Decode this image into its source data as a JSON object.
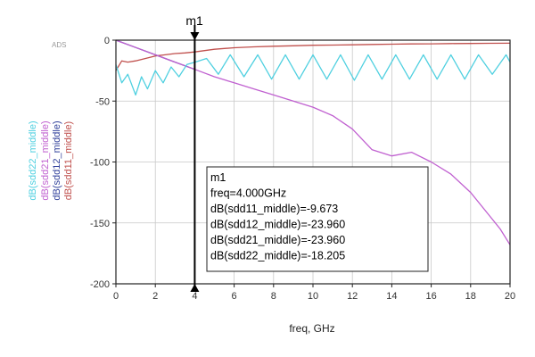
{
  "chart_data": {
    "type": "line",
    "title": "",
    "tool_label": "ADS",
    "xlabel": "freq, GHz",
    "xlim": [
      0,
      20
    ],
    "ylim": [
      -200,
      0
    ],
    "x_ticks": [
      0,
      2,
      4,
      6,
      8,
      10,
      12,
      14,
      16,
      18,
      20
    ],
    "y_ticks": [
      0,
      -50,
      -100,
      -150,
      -200
    ],
    "grid": true,
    "colors": {
      "sdd11": "#c0504d",
      "sdd12": "#2f3f9a",
      "sdd21": "#c060d0",
      "sdd22": "#4fd0e0"
    },
    "series": [
      {
        "name": "dB(sdd11_middle)",
        "key": "sdd11",
        "x": [
          0,
          0.3,
          0.6,
          1,
          1.5,
          2,
          2.5,
          3,
          3.5,
          4,
          5,
          6,
          7,
          8,
          9,
          10,
          11,
          12,
          13,
          14,
          15,
          16,
          17,
          18,
          19,
          20
        ],
        "y": [
          -25,
          -17,
          -18,
          -17,
          -15,
          -13,
          -12,
          -11,
          -10.5,
          -9.7,
          -7.5,
          -6.2,
          -5.5,
          -5.0,
          -4.6,
          -4.2,
          -4.0,
          -3.8,
          -3.5,
          -3.3,
          -3.1,
          -3.0,
          -2.8,
          -2.7,
          -2.6,
          -2.5
        ]
      },
      {
        "name": "dB(sdd12_middle)",
        "key": "sdd12",
        "x": [
          0,
          1,
          2,
          3,
          4
        ],
        "y": [
          0,
          -6,
          -12,
          -18,
          -23.96
        ]
      },
      {
        "name": "dB(sdd21_middle)",
        "key": "sdd21",
        "x": [
          0,
          1,
          2,
          3,
          4,
          5,
          6,
          7,
          8,
          9,
          10,
          11,
          12,
          13,
          14,
          15,
          16,
          17,
          18,
          19,
          19.5,
          20
        ],
        "y": [
          0,
          -6,
          -12,
          -18,
          -23.96,
          -30,
          -35,
          -40,
          -45,
          -50,
          -55,
          -62,
          -73,
          -90,
          -95,
          -92,
          -100,
          -110,
          -125,
          -145,
          -155,
          -168
        ]
      },
      {
        "name": "dB(sdd22_middle)",
        "key": "sdd22",
        "x": [
          0,
          0.3,
          0.6,
          1,
          1.3,
          1.6,
          2,
          2.4,
          2.8,
          3.2,
          3.6,
          4,
          4.6,
          5.2,
          5.8,
          6.5,
          7.2,
          7.9,
          8.6,
          9.3,
          10,
          10.7,
          11.4,
          12.1,
          12.8,
          13.5,
          14.2,
          14.9,
          15.6,
          16.3,
          17,
          17.7,
          18.4,
          19.1,
          19.8,
          20
        ],
        "y": [
          -20,
          -35,
          -28,
          -45,
          -30,
          -40,
          -25,
          -35,
          -22,
          -30,
          -20,
          -18.2,
          -15,
          -28,
          -12,
          -30,
          -12,
          -32,
          -12,
          -32,
          -12,
          -32,
          -12,
          -33,
          -12,
          -32,
          -12,
          -32,
          -12,
          -32,
          -12,
          -32,
          -12,
          -28,
          -12,
          -18
        ]
      }
    ],
    "marker": {
      "name": "m1",
      "x": 4,
      "lines": [
        "m1",
        "freq=4.000GHz",
        "dB(sdd11_middle)=-9.673",
        "dB(sdd12_middle)=-23.960",
        "dB(sdd21_middle)=-23.960",
        "dB(sdd22_middle)=-18.205"
      ]
    }
  }
}
